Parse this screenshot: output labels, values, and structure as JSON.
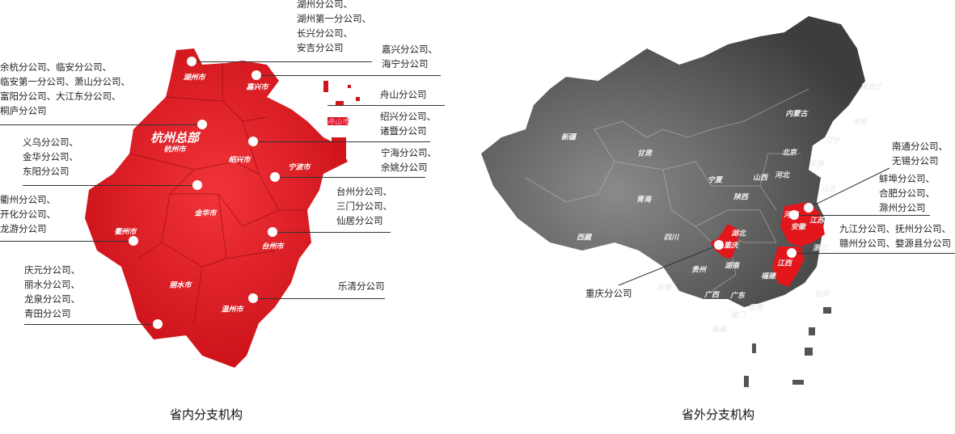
{
  "colors": {
    "accent": "#e3161c",
    "map_gray": "#5a5a5a"
  },
  "left": {
    "title": "省内分支机构",
    "hq_label": "杭州总部",
    "cities": {
      "huzhou": "湖州市",
      "jiaxing": "嘉兴市",
      "hangzhou": "杭州市",
      "shaoxing": "绍兴市",
      "ningbo": "宁波市",
      "zhoushan": "舟山市",
      "jinhua": "金华市",
      "quzhou": "衢州市",
      "taizhou": "台州市",
      "lishui": "丽水市",
      "wenzhou": "温州市"
    },
    "groups": {
      "huzhou": [
        "湖州分公司、",
        "湖州第一分公司、",
        "长兴分公司、",
        "安吉分公司"
      ],
      "jiaxing": [
        "嘉兴分公司、",
        "海宁分公司"
      ],
      "zhoushan": [
        "舟山分公司"
      ],
      "hangzhou": [
        "余杭分公司、临安分公司、",
        "临安第一分公司、萧山分公司、",
        "富阳分公司、大江东分公司、",
        "桐庐分公司"
      ],
      "shaoxing": [
        "绍兴分公司、",
        "诸暨分公司"
      ],
      "jinhua": [
        "义乌分公司、",
        "金华分公司、",
        "东阳分公司"
      ],
      "ningbo": [
        "宁海分公司、",
        "余姚分公司"
      ],
      "quzhou": [
        "衢州分公司、",
        "开化分公司、",
        "龙游分公司"
      ],
      "taizhou": [
        "台州分公司、",
        "三门分公司、",
        "仙居分公司"
      ],
      "lishui": [
        "庆元分公司、",
        "丽水分公司、",
        "龙泉分公司、",
        "青田分公司"
      ],
      "wenzhou": [
        "乐清分公司"
      ]
    }
  },
  "right": {
    "title": "省外分支机构",
    "provinces": {
      "xinjiang": "新疆",
      "gansu": "甘肃",
      "neimenggu": "内蒙古",
      "heilongjiang": "黑龙江",
      "jilin": "吉林",
      "liaoning": "辽宁",
      "beijing": "北京",
      "tianjin": "天津",
      "hebei": "河北",
      "shanxi": "山西",
      "ningxia": "宁夏",
      "qinghai": "青海",
      "shaanxi": "陕西",
      "shandong": "山东",
      "henan": "河南",
      "xizang": "西藏",
      "sichuan": "四川",
      "chongqing": "重庆",
      "hubei": "湖北",
      "anhui": "安徽",
      "jiangsu": "江苏",
      "zhejiang": "浙江",
      "jiangxi": "江西",
      "hunan": "湖南",
      "guizhou": "贵州",
      "yunnan": "云南",
      "guangxi": "广西",
      "guangdong": "广东",
      "fujian": "福建",
      "aomen": "澳门",
      "xianggang": "香港",
      "hainan": "海南",
      "taiwan": "台湾"
    },
    "groups": {
      "jiangsu": [
        "南通分公司、",
        "无锡分公司"
      ],
      "anhui": [
        "蚌埠分公司、",
        "合肥分公司、",
        "滁州分公司"
      ],
      "jiangxi": [
        "九江分公司、抚州分公司、",
        "赣州分公司、婺源县分公司"
      ],
      "chongqing": [
        "重庆分公司"
      ]
    }
  }
}
